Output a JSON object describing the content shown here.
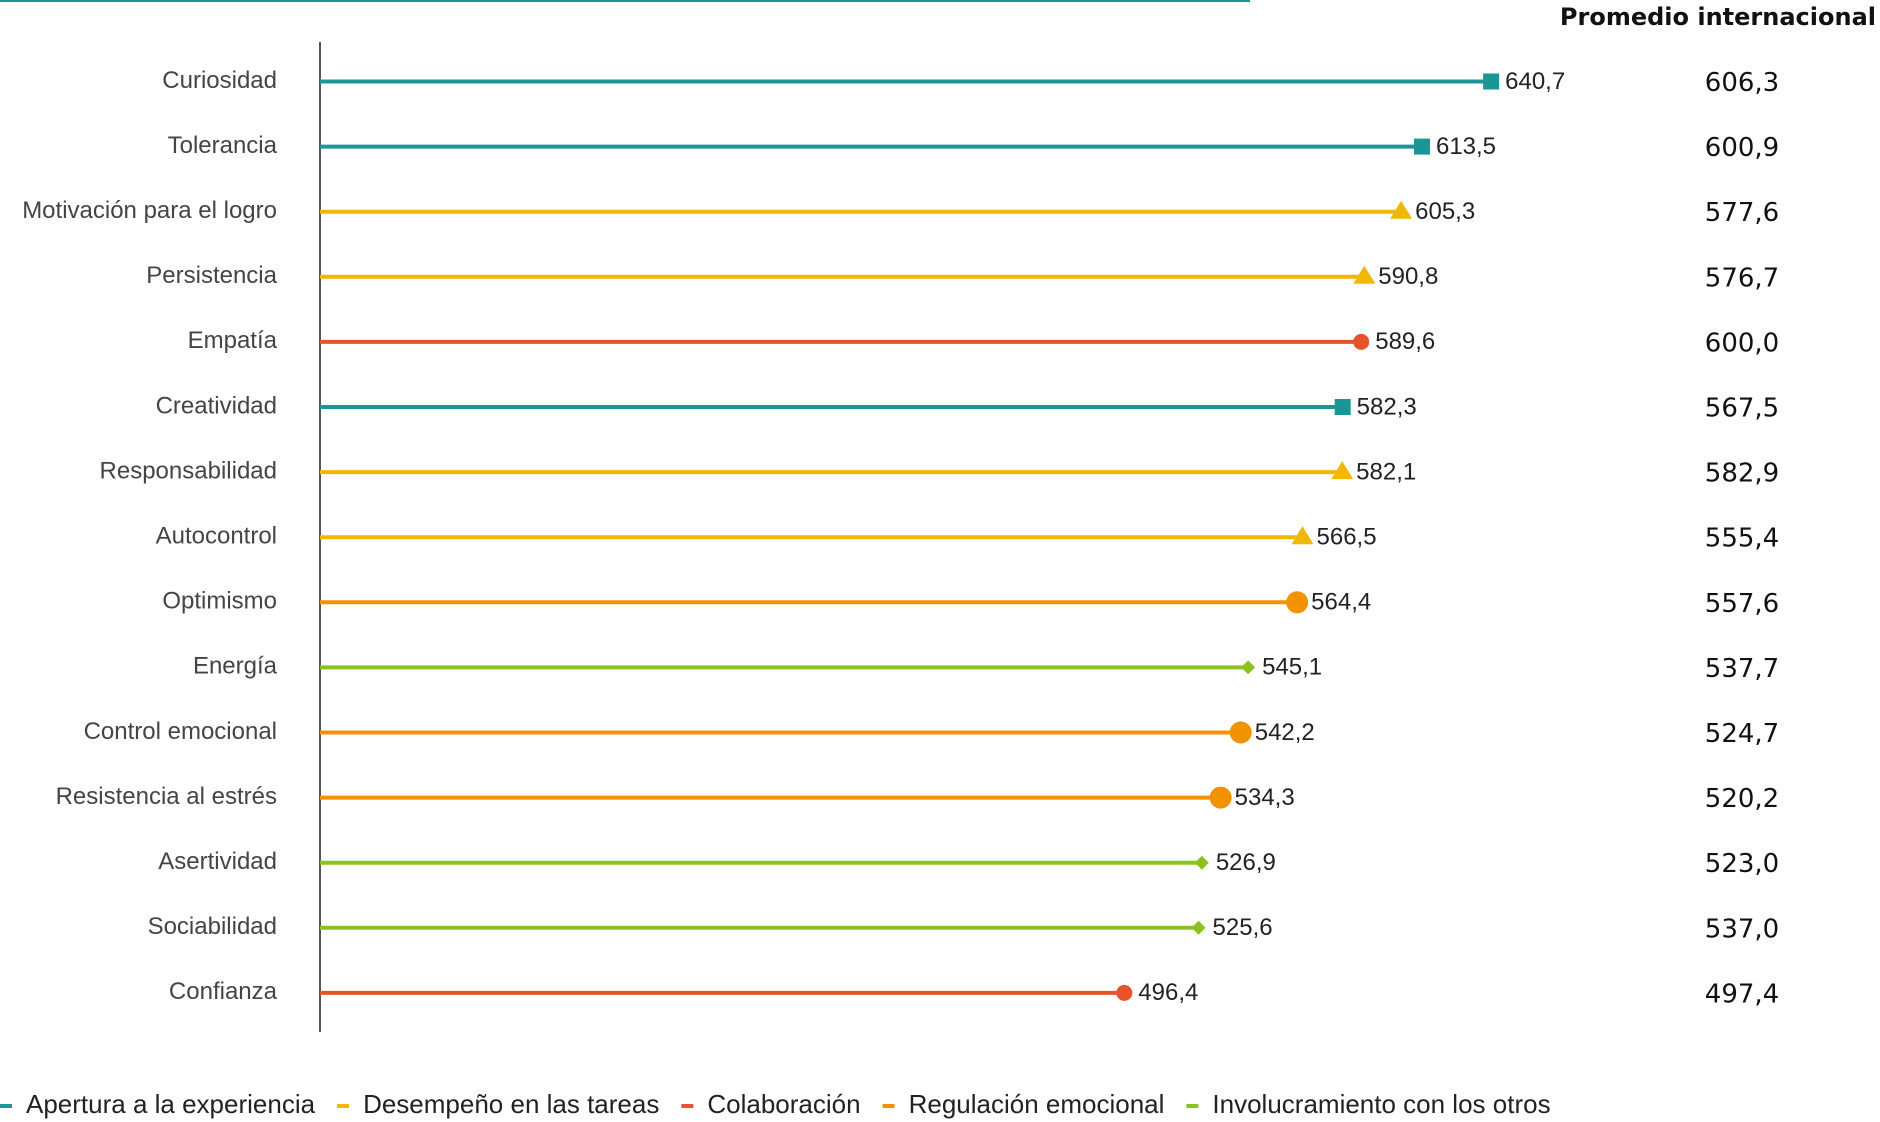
{
  "chart_data": {
    "type": "lollipop",
    "categories": [
      "Curiosidad",
      "Tolerancia",
      "Motivación para el logro",
      "Persistencia",
      "Empatía",
      "Creatividad",
      "Responsabilidad",
      "Autocontrol",
      "Optimismo",
      "Energía",
      "Control emocional",
      "Resistencia al estrés",
      "Asertividad",
      "Sociabilidad",
      "Confianza"
    ],
    "xlim": [
      180,
      715
    ],
    "series": [
      {
        "name": "Apertura a la experiencia",
        "color": "#1a9696",
        "marker": "square",
        "values": [
          640.7,
          613.5,
          null,
          null,
          null,
          582.3,
          null,
          null,
          null,
          null,
          null,
          null,
          null,
          null,
          null
        ],
        "value_labels": [
          "640,7",
          "613,5",
          null,
          null,
          null,
          "582,3",
          null,
          null,
          null,
          null,
          null,
          null,
          null,
          null,
          null
        ]
      },
      {
        "name": "Desempeño en las tareas",
        "color": "#f0b800",
        "marker": "triangle",
        "values": [
          null,
          null,
          605.3,
          590.8,
          null,
          null,
          582.1,
          566.5,
          null,
          null,
          null,
          null,
          null,
          null,
          null
        ],
        "value_labels": [
          null,
          null,
          "605,3",
          "590,8",
          null,
          null,
          "582,1",
          "566,5",
          null,
          null,
          null,
          null,
          null,
          null,
          null
        ]
      },
      {
        "name": "Colaboración",
        "color": "#e8522a",
        "marker": "circle",
        "values": [
          null,
          null,
          null,
          null,
          589.6,
          null,
          null,
          null,
          null,
          null,
          null,
          null,
          null,
          null,
          496.4
        ],
        "value_labels": [
          null,
          null,
          null,
          null,
          "589,6",
          null,
          null,
          null,
          null,
          null,
          null,
          null,
          null,
          null,
          "496,4"
        ]
      },
      {
        "name": "Regulación emocional",
        "color": "#f39200",
        "marker": "large-circle",
        "values": [
          null,
          null,
          null,
          null,
          null,
          null,
          null,
          null,
          564.4,
          null,
          542.2,
          534.3,
          null,
          null,
          null
        ],
        "value_labels": [
          null,
          null,
          null,
          null,
          null,
          null,
          null,
          null,
          "564,4",
          null,
          "542,2",
          "534,3",
          null,
          null,
          null
        ]
      },
      {
        "name": "Involucramiento con los otros",
        "color": "#8cc21e",
        "marker": "diamond",
        "values": [
          null,
          null,
          null,
          null,
          null,
          null,
          null,
          null,
          null,
          545.1,
          null,
          null,
          526.9,
          525.6,
          null
        ],
        "value_labels": [
          null,
          null,
          null,
          null,
          null,
          null,
          null,
          null,
          null,
          "545,1",
          null,
          null,
          "526,9",
          "525,6",
          null
        ]
      }
    ],
    "international_average": {
      "title": "Promedio internacional",
      "values": [
        606.3,
        600.9,
        577.6,
        576.7,
        600.0,
        567.5,
        582.9,
        555.4,
        557.6,
        537.7,
        524.7,
        520.2,
        523.0,
        537.0,
        497.4
      ],
      "value_labels": [
        "606,3",
        "600,9",
        "577,6",
        "576,7",
        "600,0",
        "567,5",
        "582,9",
        "555,4",
        "557,6",
        "537,7",
        "524,7",
        "520,2",
        "523,0",
        "537,0",
        "497,4"
      ]
    }
  }
}
